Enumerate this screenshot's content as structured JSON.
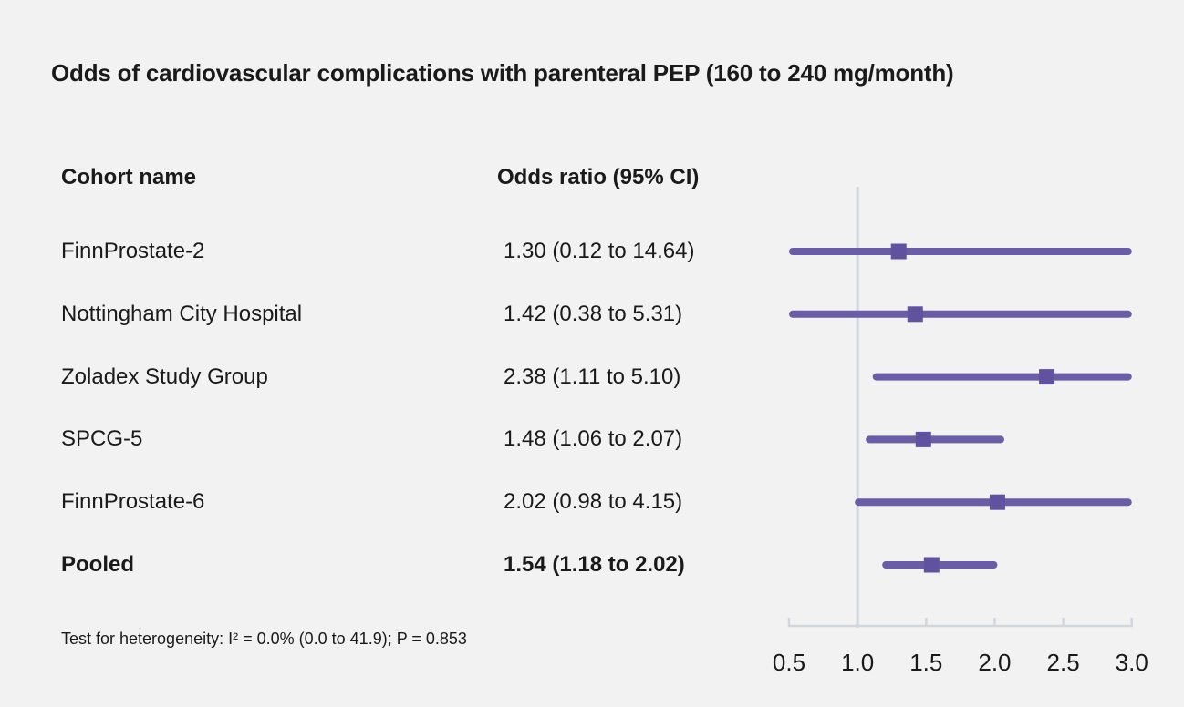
{
  "title": "Odds of cardiovascular complications with parenteral PEP (160 to 240 mg/month)",
  "table": {
    "col1_header": "Cohort name",
    "col2_header": "Odds ratio (95% CI)"
  },
  "footnote": "Test for heterogeneity: I² = 0.0% (0.0 to 41.9); P = 0.853",
  "colors": {
    "background": "#f2f2f2",
    "ci_line": "#6b5ca7",
    "marker": "#6152a0",
    "reference_line": "#d3d7e0",
    "axis": "#d2d6dd",
    "text": "#1a1a1a"
  },
  "chart_data": {
    "type": "forest",
    "marker_shape": "square",
    "x_axis": {
      "min": 0.5,
      "max": 3.0,
      "ticks": [
        0.5,
        1.0,
        1.5,
        2.0,
        2.5,
        3.0
      ],
      "reference_value": 1.0,
      "scale": "linear"
    },
    "rows": [
      {
        "cohort": "FinnProstate-2",
        "label": "1.30 (0.12 to 14.64)",
        "estimate": 1.3,
        "lower": 0.12,
        "upper": 14.64,
        "pooled": false
      },
      {
        "cohort": "Nottingham City Hospital",
        "label": "1.42 (0.38 to 5.31)",
        "estimate": 1.42,
        "lower": 0.38,
        "upper": 5.31,
        "pooled": false
      },
      {
        "cohort": "Zoladex Study Group",
        "label": "2.38 (1.11 to 5.10)",
        "estimate": 2.38,
        "lower": 1.11,
        "upper": 5.1,
        "pooled": false
      },
      {
        "cohort": "SPCG-5",
        "label": "1.48 (1.06 to 2.07)",
        "estimate": 1.48,
        "lower": 1.06,
        "upper": 2.07,
        "pooled": false
      },
      {
        "cohort": "FinnProstate-6",
        "label": "2.02 (0.98 to 4.15)",
        "estimate": 2.02,
        "lower": 0.98,
        "upper": 4.15,
        "pooled": false
      },
      {
        "cohort": "Pooled",
        "label": "1.54 (1.18 to 2.02)",
        "estimate": 1.54,
        "lower": 1.18,
        "upper": 2.02,
        "pooled": true
      }
    ]
  }
}
